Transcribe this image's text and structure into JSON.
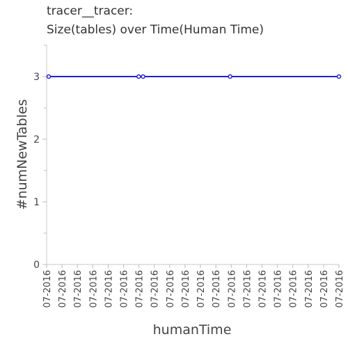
{
  "chart_data": {
    "type": "line",
    "title": "tracer__tracer:",
    "subtitle": "Size(tables) over Time(Human Time)",
    "xlabel": "humanTime",
    "ylabel": "#numNewTables",
    "ylim": [
      0,
      3.5
    ],
    "yticks": [
      "0",
      "1",
      "2",
      "3"
    ],
    "xtick_labels": [
      "07-2016",
      "07-2016",
      "07-2016",
      "07-2016",
      "07-2016",
      "07-2016",
      "07-2016",
      "07-2016",
      "07-2016",
      "07-2016",
      "07-2016",
      "07-2016",
      "07-2016",
      "07-2016",
      "07-2016",
      "07-2016",
      "07-2016",
      "07-2016",
      "07-2016",
      "07-2016"
    ],
    "series": [
      {
        "values": [
          3,
          3,
          3,
          3,
          3
        ],
        "color": "#1f1fd6"
      }
    ],
    "grid": false,
    "legend": "none"
  }
}
